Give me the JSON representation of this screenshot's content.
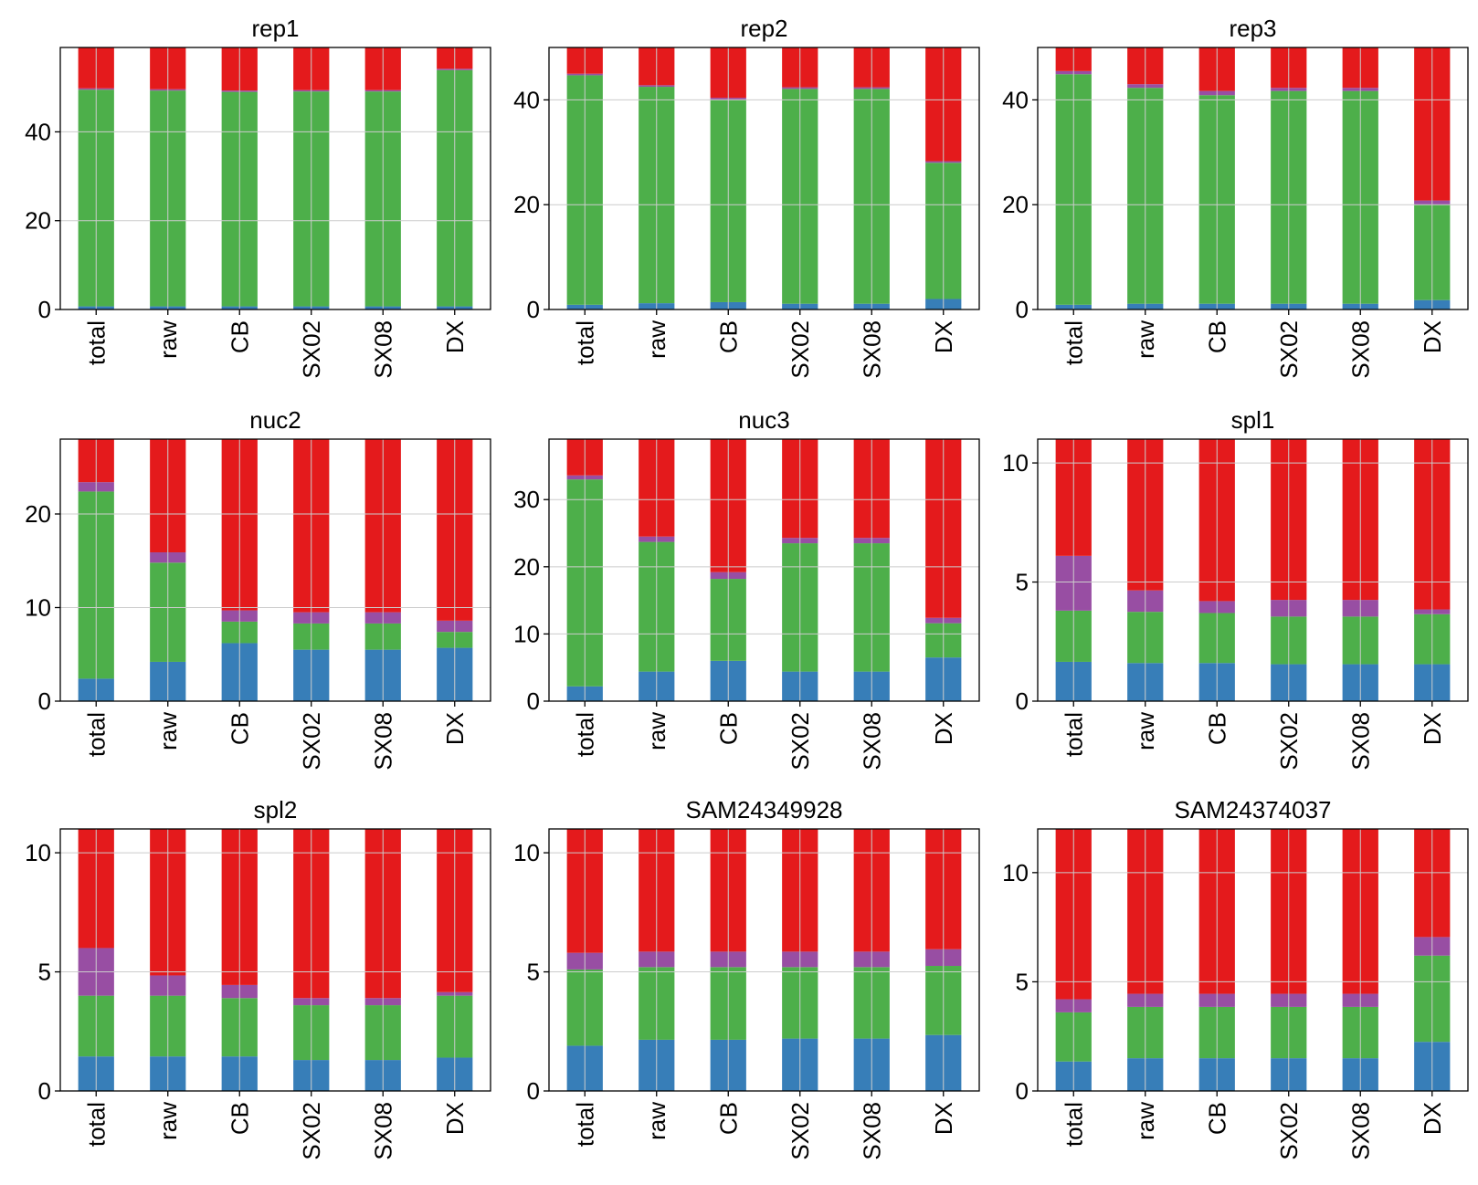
{
  "colors": {
    "segments": [
      "#377eb8",
      "#4daf4a",
      "#984ea3",
      "#e41a1c"
    ],
    "grid": "#cccccc",
    "axis": "#000000"
  },
  "chart_data": [
    {
      "type": "bar",
      "stacked": true,
      "title": "rep1",
      "categories": [
        "total",
        "raw",
        "CB",
        "SX02",
        "SX08",
        "DX"
      ],
      "yticks": [
        0,
        20,
        40
      ],
      "ylim": [
        0,
        59
      ],
      "grid": true,
      "series": [
        {
          "values": [
            0.7,
            0.7,
            0.7,
            0.7,
            0.7,
            0.7
          ]
        },
        {
          "values": [
            48.8,
            48.6,
            48.3,
            48.4,
            48.4,
            53.2
          ]
        },
        {
          "values": [
            0.3,
            0.3,
            0.3,
            0.3,
            0.3,
            0.3
          ]
        },
        {
          "values": [
            9.2,
            9.4,
            9.7,
            9.6,
            9.6,
            4.8
          ]
        }
      ]
    },
    {
      "type": "bar",
      "stacked": true,
      "title": "rep2",
      "categories": [
        "total",
        "raw",
        "CB",
        "SX02",
        "SX08",
        "DX"
      ],
      "yticks": [
        0,
        20,
        40
      ],
      "ylim": [
        0,
        50
      ],
      "grid": true,
      "series": [
        {
          "values": [
            0.9,
            1.2,
            1.4,
            1.1,
            1.1,
            2.0
          ]
        },
        {
          "values": [
            43.8,
            41.3,
            38.6,
            41.0,
            41.0,
            26.0
          ]
        },
        {
          "values": [
            0.3,
            0.3,
            0.4,
            0.3,
            0.3,
            0.3
          ]
        },
        {
          "values": [
            5.0,
            7.2,
            9.6,
            7.6,
            7.6,
            21.7
          ]
        }
      ]
    },
    {
      "type": "bar",
      "stacked": true,
      "title": "rep3",
      "categories": [
        "total",
        "raw",
        "CB",
        "SX02",
        "SX08",
        "DX"
      ],
      "yticks": [
        0,
        20,
        40
      ],
      "ylim": [
        0,
        50
      ],
      "grid": true,
      "series": [
        {
          "values": [
            0.9,
            1.1,
            1.1,
            1.1,
            1.1,
            1.8
          ]
        },
        {
          "values": [
            44.0,
            41.2,
            39.8,
            40.6,
            40.6,
            18.2
          ]
        },
        {
          "values": [
            0.6,
            0.7,
            0.8,
            0.6,
            0.6,
            0.8
          ]
        },
        {
          "values": [
            4.5,
            7.0,
            8.3,
            7.7,
            7.7,
            29.2
          ]
        }
      ]
    },
    {
      "type": "bar",
      "stacked": true,
      "title": "nuc2",
      "categories": [
        "total",
        "raw",
        "CB",
        "SX02",
        "SX08",
        "DX"
      ],
      "yticks": [
        0,
        10,
        20
      ],
      "ylim": [
        0,
        28
      ],
      "grid": true,
      "series": [
        {
          "values": [
            2.4,
            4.2,
            6.2,
            5.5,
            5.5,
            5.7
          ]
        },
        {
          "values": [
            20.0,
            10.6,
            2.3,
            2.8,
            2.8,
            1.7
          ]
        },
        {
          "values": [
            1.0,
            1.1,
            1.2,
            1.2,
            1.2,
            1.2
          ]
        },
        {
          "values": [
            4.6,
            12.1,
            18.3,
            18.5,
            18.5,
            19.4
          ]
        }
      ]
    },
    {
      "type": "bar",
      "stacked": true,
      "title": "nuc3",
      "categories": [
        "total",
        "raw",
        "CB",
        "SX02",
        "SX08",
        "DX"
      ],
      "yticks": [
        0,
        10,
        20,
        30
      ],
      "ylim": [
        0,
        39
      ],
      "grid": true,
      "series": [
        {
          "values": [
            2.2,
            4.4,
            6.0,
            4.4,
            4.4,
            6.5
          ]
        },
        {
          "values": [
            30.8,
            19.3,
            12.2,
            19.1,
            19.1,
            5.1
          ]
        },
        {
          "values": [
            0.6,
            0.8,
            1.0,
            0.8,
            0.8,
            0.8
          ]
        },
        {
          "values": [
            5.4,
            14.5,
            19.8,
            14.7,
            14.7,
            26.6
          ]
        }
      ]
    },
    {
      "type": "bar",
      "stacked": true,
      "title": "spl1",
      "categories": [
        "total",
        "raw",
        "CB",
        "SX02",
        "SX08",
        "DX"
      ],
      "yticks": [
        0,
        5,
        10
      ],
      "ylim": [
        0,
        11
      ],
      "grid": true,
      "series": [
        {
          "values": [
            1.65,
            1.6,
            1.6,
            1.55,
            1.55,
            1.55
          ]
        },
        {
          "values": [
            2.15,
            2.15,
            2.1,
            2.0,
            2.0,
            2.1
          ]
        },
        {
          "values": [
            2.3,
            0.9,
            0.5,
            0.7,
            0.7,
            0.2
          ]
        },
        {
          "values": [
            4.9,
            6.35,
            6.8,
            6.75,
            6.75,
            7.15
          ]
        }
      ]
    },
    {
      "type": "bar",
      "stacked": true,
      "title": "spl2",
      "categories": [
        "total",
        "raw",
        "CB",
        "SX02",
        "SX08",
        "DX"
      ],
      "yticks": [
        0,
        5,
        10
      ],
      "ylim": [
        0,
        11
      ],
      "grid": true,
      "series": [
        {
          "values": [
            1.45,
            1.45,
            1.45,
            1.3,
            1.3,
            1.4
          ]
        },
        {
          "values": [
            2.55,
            2.55,
            2.45,
            2.3,
            2.3,
            2.6
          ]
        },
        {
          "values": [
            2.0,
            0.85,
            0.55,
            0.3,
            0.3,
            0.15
          ]
        },
        {
          "values": [
            5.0,
            6.15,
            6.55,
            7.1,
            7.1,
            6.85
          ]
        }
      ]
    },
    {
      "type": "bar",
      "stacked": true,
      "title": "SAM24349928",
      "categories": [
        "total",
        "raw",
        "CB",
        "SX02",
        "SX08",
        "DX"
      ],
      "yticks": [
        0,
        5,
        10
      ],
      "ylim": [
        0,
        11
      ],
      "grid": true,
      "series": [
        {
          "values": [
            1.9,
            2.15,
            2.15,
            2.2,
            2.2,
            2.35
          ]
        },
        {
          "values": [
            3.2,
            3.05,
            3.05,
            3.0,
            3.0,
            2.9
          ]
        },
        {
          "values": [
            0.7,
            0.65,
            0.65,
            0.65,
            0.65,
            0.7
          ]
        },
        {
          "values": [
            5.2,
            5.15,
            5.15,
            5.15,
            5.15,
            5.05
          ]
        }
      ]
    },
    {
      "type": "bar",
      "stacked": true,
      "title": "SAM24374037",
      "categories": [
        "total",
        "raw",
        "CB",
        "SX02",
        "SX08",
        "DX"
      ],
      "yticks": [
        0,
        5,
        10
      ],
      "ylim": [
        0,
        12
      ],
      "grid": true,
      "series": [
        {
          "values": [
            1.35,
            1.5,
            1.5,
            1.5,
            1.5,
            2.25
          ]
        },
        {
          "values": [
            2.25,
            2.35,
            2.35,
            2.35,
            2.35,
            3.95
          ]
        },
        {
          "values": [
            0.6,
            0.6,
            0.6,
            0.6,
            0.6,
            0.85
          ]
        },
        {
          "values": [
            7.8,
            7.55,
            7.55,
            7.55,
            7.55,
            4.95
          ]
        }
      ]
    }
  ]
}
